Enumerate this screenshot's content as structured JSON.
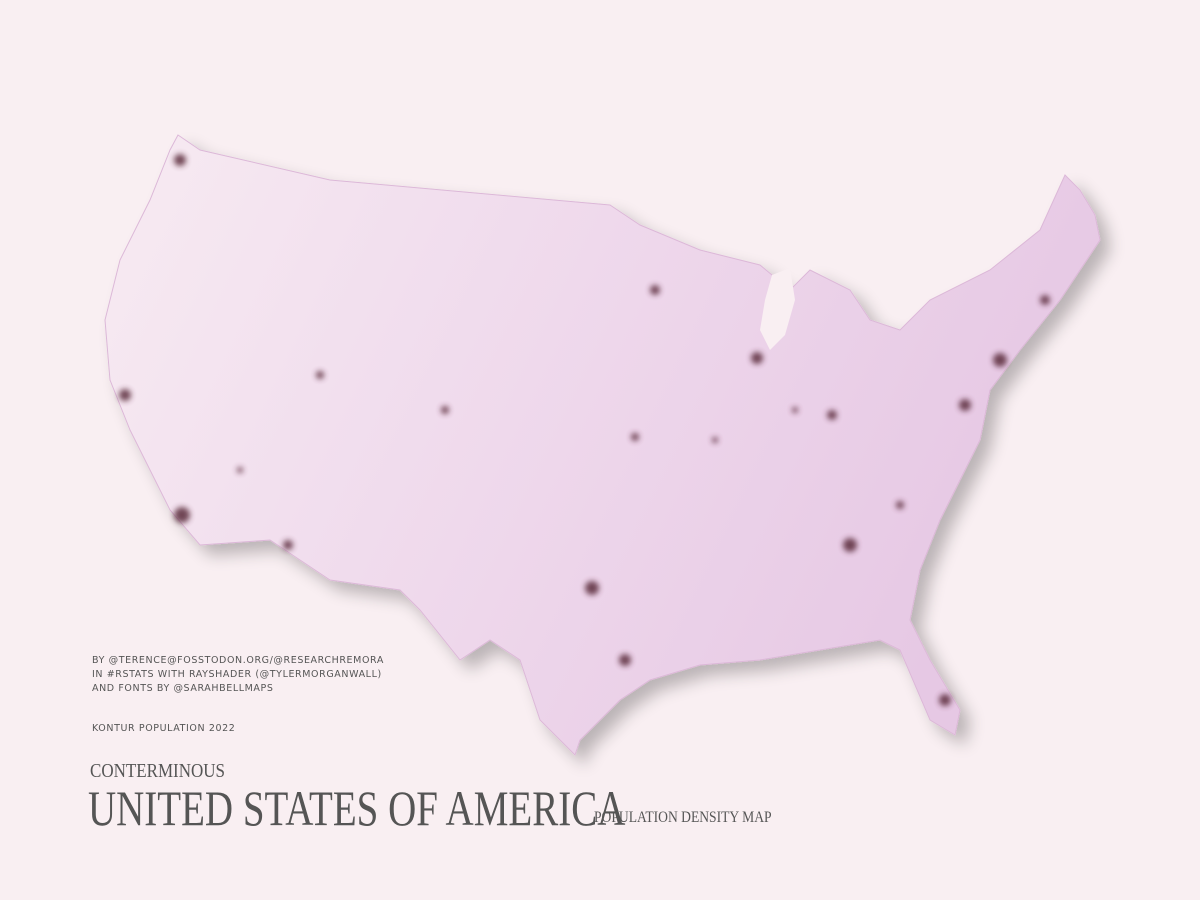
{
  "credits": {
    "lines": [
      "BY @TERENCE@FOSSTODON.ORG/@RESEARCHREMORA",
      "IN #RSTATS WITH RAYSHADER (@TYLERMORGANWALL)",
      "AND FONTS BY @SARAHBELLMAPS"
    ],
    "source": "KONTUR POPULATION 2022"
  },
  "title": {
    "kicker": "CONTERMINOUS",
    "main": "UNITED STATES OF AMERICA",
    "subtitle": "POPULATION DENSITY MAP"
  }
}
